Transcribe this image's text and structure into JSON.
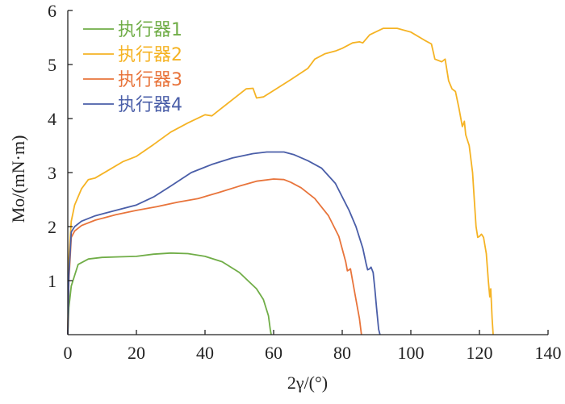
{
  "chart_data": {
    "type": "line",
    "title": "",
    "xlabel": "2γ/(°)",
    "ylabel": "Mo/(mN·m)",
    "xlim": [
      0,
      140
    ],
    "ylim": [
      0,
      6
    ],
    "xticks": [
      0,
      20,
      40,
      60,
      80,
      100,
      120,
      140
    ],
    "yticks": [
      1,
      2,
      3,
      4,
      5,
      6
    ],
    "grid": false,
    "legend_position": "top-left",
    "series": [
      {
        "name": "执行器1",
        "color": "#70ad47",
        "points": [
          [
            0,
            0
          ],
          [
            0.3,
            0.5
          ],
          [
            1,
            0.9
          ],
          [
            3,
            1.3
          ],
          [
            6,
            1.4
          ],
          [
            10,
            1.43
          ],
          [
            15,
            1.44
          ],
          [
            20,
            1.45
          ],
          [
            25,
            1.49
          ],
          [
            30,
            1.51
          ],
          [
            35,
            1.5
          ],
          [
            40,
            1.45
          ],
          [
            45,
            1.35
          ],
          [
            50,
            1.15
          ],
          [
            55,
            0.85
          ],
          [
            57,
            0.65
          ],
          [
            58.5,
            0.35
          ],
          [
            59,
            0.1
          ],
          [
            59.3,
            0
          ]
        ]
      },
      {
        "name": "执行器2",
        "color": "#f5b324",
        "points": [
          [
            0,
            0
          ],
          [
            0.3,
            1.4
          ],
          [
            1,
            2.1
          ],
          [
            2,
            2.4
          ],
          [
            4,
            2.7
          ],
          [
            6,
            2.87
          ],
          [
            8,
            2.9
          ],
          [
            12,
            3.05
          ],
          [
            16,
            3.2
          ],
          [
            20,
            3.3
          ],
          [
            25,
            3.52
          ],
          [
            30,
            3.75
          ],
          [
            35,
            3.92
          ],
          [
            40,
            4.07
          ],
          [
            42,
            4.05
          ],
          [
            44,
            4.15
          ],
          [
            48,
            4.35
          ],
          [
            52,
            4.55
          ],
          [
            54,
            4.56
          ],
          [
            55,
            4.38
          ],
          [
            57,
            4.4
          ],
          [
            60,
            4.52
          ],
          [
            65,
            4.72
          ],
          [
            70,
            4.93
          ],
          [
            72,
            5.1
          ],
          [
            75,
            5.2
          ],
          [
            78,
            5.25
          ],
          [
            80,
            5.3
          ],
          [
            83,
            5.4
          ],
          [
            85,
            5.42
          ],
          [
            86,
            5.4
          ],
          [
            88,
            5.55
          ],
          [
            92,
            5.67
          ],
          [
            96,
            5.67
          ],
          [
            100,
            5.6
          ],
          [
            104,
            5.45
          ],
          [
            106,
            5.38
          ],
          [
            107,
            5.1
          ],
          [
            109,
            5.05
          ],
          [
            110,
            5.1
          ],
          [
            111,
            4.7
          ],
          [
            112,
            4.55
          ],
          [
            113,
            4.5
          ],
          [
            114,
            4.2
          ],
          [
            115,
            3.85
          ],
          [
            115.6,
            3.95
          ],
          [
            116,
            3.7
          ],
          [
            117,
            3.5
          ],
          [
            118,
            3.0
          ],
          [
            118.5,
            2.5
          ],
          [
            119,
            2.0
          ],
          [
            119.5,
            1.8
          ],
          [
            120,
            1.82
          ],
          [
            120.6,
            1.86
          ],
          [
            121.2,
            1.8
          ],
          [
            122,
            1.5
          ],
          [
            122.6,
            1.0
          ],
          [
            123,
            0.7
          ],
          [
            123.3,
            0.85
          ],
          [
            123.7,
            0.3
          ],
          [
            124,
            0
          ]
        ]
      },
      {
        "name": "执行器3",
        "color": "#e8743b",
        "points": [
          [
            0,
            0
          ],
          [
            0.3,
            1.0
          ],
          [
            1,
            1.8
          ],
          [
            2,
            1.92
          ],
          [
            4,
            2.02
          ],
          [
            8,
            2.12
          ],
          [
            14,
            2.22
          ],
          [
            20,
            2.3
          ],
          [
            26,
            2.37
          ],
          [
            32,
            2.45
          ],
          [
            38,
            2.52
          ],
          [
            44,
            2.63
          ],
          [
            50,
            2.75
          ],
          [
            55,
            2.84
          ],
          [
            60,
            2.88
          ],
          [
            63,
            2.87
          ],
          [
            65,
            2.82
          ],
          [
            68,
            2.72
          ],
          [
            72,
            2.52
          ],
          [
            76,
            2.2
          ],
          [
            79,
            1.82
          ],
          [
            81,
            1.35
          ],
          [
            81.5,
            1.18
          ],
          [
            82,
            1.2
          ],
          [
            82.4,
            1.22
          ],
          [
            83,
            1.0
          ],
          [
            84,
            0.65
          ],
          [
            85,
            0.3
          ],
          [
            85.6,
            0
          ]
        ]
      },
      {
        "name": "执行器4",
        "color": "#4a5ea8",
        "points": [
          [
            0,
            0
          ],
          [
            0.3,
            1.1
          ],
          [
            1,
            1.9
          ],
          [
            2,
            2.0
          ],
          [
            4,
            2.1
          ],
          [
            8,
            2.2
          ],
          [
            14,
            2.3
          ],
          [
            20,
            2.4
          ],
          [
            25,
            2.55
          ],
          [
            30,
            2.75
          ],
          [
            36,
            3.0
          ],
          [
            42,
            3.15
          ],
          [
            48,
            3.27
          ],
          [
            54,
            3.35
          ],
          [
            58,
            3.38
          ],
          [
            63,
            3.38
          ],
          [
            66,
            3.33
          ],
          [
            70,
            3.22
          ],
          [
            74,
            3.08
          ],
          [
            78,
            2.8
          ],
          [
            82,
            2.3
          ],
          [
            84,
            2.0
          ],
          [
            86,
            1.6
          ],
          [
            87,
            1.3
          ],
          [
            87.4,
            1.2
          ],
          [
            88,
            1.22
          ],
          [
            88.4,
            1.25
          ],
          [
            89,
            1.15
          ],
          [
            89.5,
            0.85
          ],
          [
            90,
            0.5
          ],
          [
            90.6,
            0.1
          ],
          [
            91,
            0
          ]
        ]
      }
    ]
  }
}
